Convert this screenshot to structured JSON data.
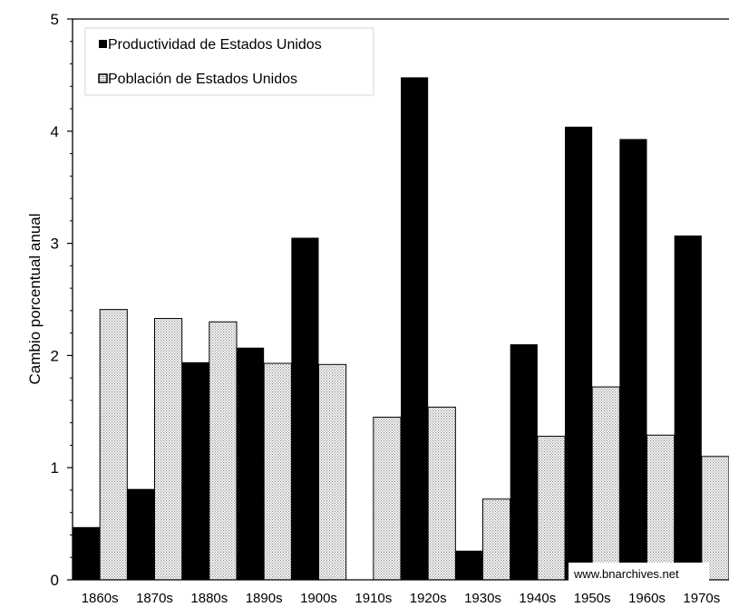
{
  "chart_data": {
    "type": "bar",
    "ylabel": "Cambio porcentual anual",
    "ylim": [
      0,
      5
    ],
    "yticks": [
      "0",
      "1",
      "2",
      "3",
      "4",
      "5"
    ],
    "categories": [
      "1860s",
      "1870s",
      "1880s",
      "1890s",
      "1900s",
      "1910s",
      "1920s",
      "1930s",
      "1940s",
      "1950s",
      "1960s",
      "1970s"
    ],
    "series": [
      {
        "name": "Productividad de Estados Unidos",
        "color": "#000000",
        "fill": "solid",
        "values": [
          0.47,
          0.81,
          1.94,
          2.07,
          3.05,
          0.0,
          4.48,
          0.26,
          2.1,
          4.04,
          3.93,
          3.07
        ]
      },
      {
        "name": "Población de Estados Unidos",
        "color": "#e6e6e6",
        "fill": "dotted",
        "values": [
          2.41,
          2.33,
          2.3,
          1.93,
          1.92,
          1.45,
          1.54,
          0.72,
          1.28,
          1.72,
          1.29,
          1.1
        ]
      }
    ],
    "legend": "top-left",
    "grid": false
  },
  "watermark": "www.bnarchives.net"
}
